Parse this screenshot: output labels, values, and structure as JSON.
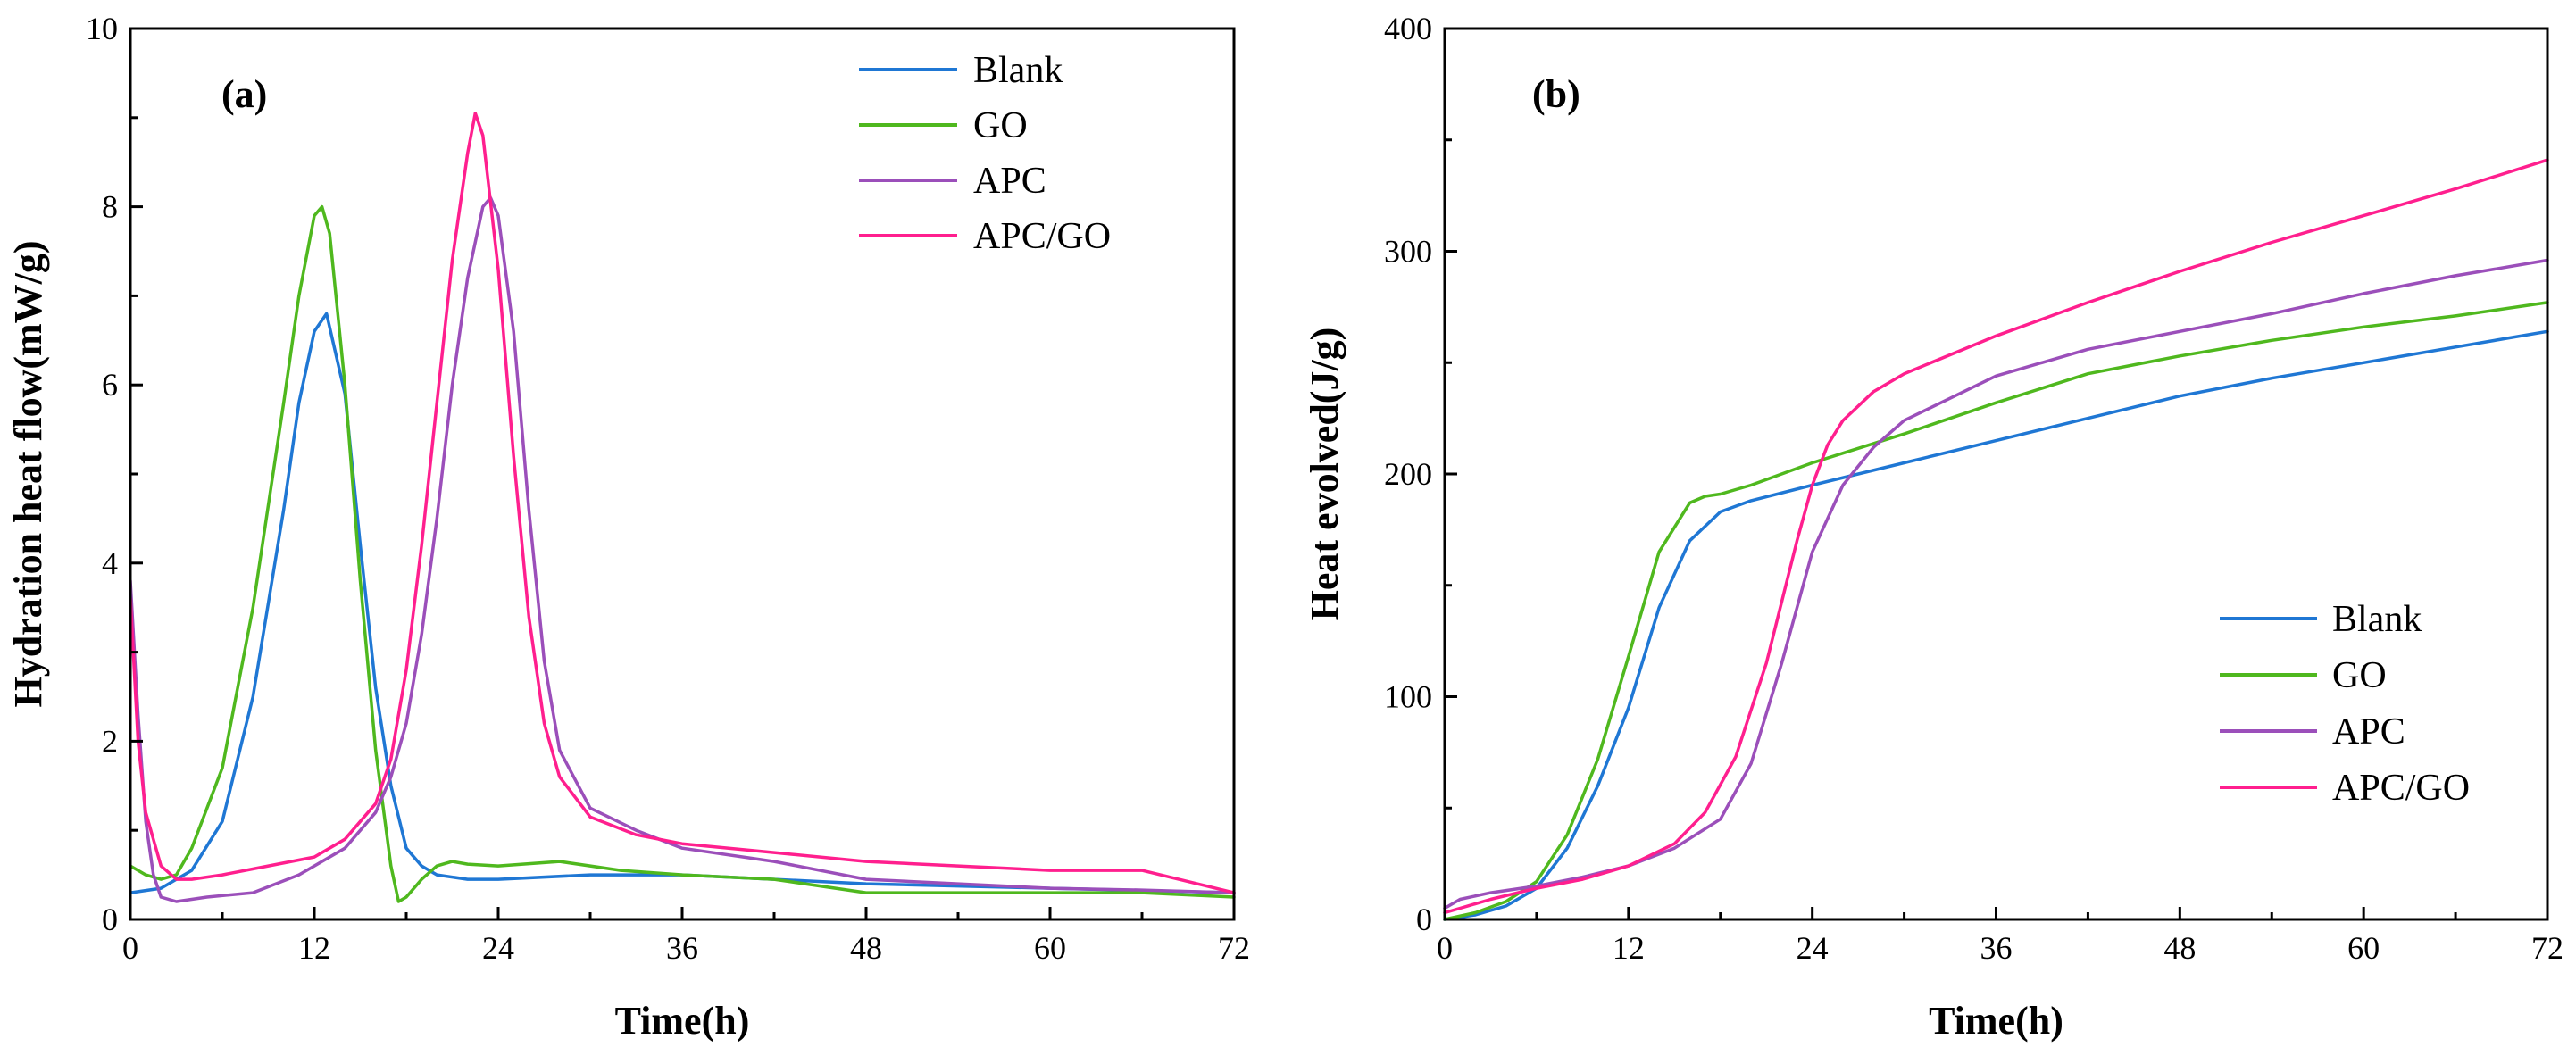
{
  "chart_data": [
    {
      "type": "line",
      "panel_label": "(a)",
      "xlabel": "Time(h)",
      "ylabel": "Hydration heat flow(mW/g)",
      "xlim": [
        0,
        72
      ],
      "ylim": [
        0,
        10
      ],
      "xticks": [
        0,
        12,
        24,
        36,
        48,
        60,
        72
      ],
      "yticks": [
        0,
        2,
        4,
        6,
        8,
        10
      ],
      "legend_position": "top-right",
      "grid": false,
      "series": [
        {
          "name": "Blank",
          "color": "#1f77d4",
          "x": [
            0,
            2,
            4,
            6,
            8,
            10,
            11,
            12,
            12.8,
            14,
            15,
            16,
            17,
            18,
            19,
            20,
            22,
            24,
            30,
            36,
            48,
            60,
            72
          ],
          "y": [
            0.3,
            0.35,
            0.55,
            1.1,
            2.5,
            4.6,
            5.8,
            6.6,
            6.8,
            5.9,
            4.2,
            2.6,
            1.5,
            0.8,
            0.6,
            0.5,
            0.45,
            0.45,
            0.5,
            0.5,
            0.4,
            0.35,
            0.3
          ]
        },
        {
          "name": "GO",
          "color": "#4fb81e",
          "x": [
            0,
            1,
            2,
            3,
            4,
            6,
            8,
            10,
            11,
            12,
            12.5,
            13,
            14,
            15,
            16,
            17,
            17.5,
            18,
            19,
            20,
            21,
            22,
            24,
            28,
            32,
            36,
            42,
            48,
            54,
            60,
            66,
            72
          ],
          "y": [
            0.6,
            0.5,
            0.45,
            0.5,
            0.8,
            1.7,
            3.5,
            5.8,
            7.0,
            7.9,
            8.0,
            7.7,
            6.0,
            3.8,
            1.9,
            0.6,
            0.2,
            0.25,
            0.45,
            0.6,
            0.65,
            0.62,
            0.6,
            0.65,
            0.55,
            0.5,
            0.45,
            0.3,
            0.3,
            0.3,
            0.3,
            0.25
          ]
        },
        {
          "name": "APC",
          "color": "#9b4fba",
          "x": [
            0,
            0.5,
            1,
            1.5,
            2,
            3,
            5,
            8,
            11,
            14,
            16,
            17,
            18,
            19,
            20,
            21,
            22,
            23,
            23.5,
            24,
            25,
            26,
            27,
            28,
            30,
            33,
            36,
            42,
            48,
            54,
            60,
            66,
            72
          ],
          "y": [
            3.8,
            2.3,
            1.1,
            0.5,
            0.25,
            0.2,
            0.25,
            0.3,
            0.5,
            0.8,
            1.2,
            1.6,
            2.2,
            3.2,
            4.5,
            6.0,
            7.2,
            8.0,
            8.1,
            7.9,
            6.6,
            4.6,
            2.9,
            1.9,
            1.25,
            1.0,
            0.8,
            0.65,
            0.45,
            0.4,
            0.35,
            0.33,
            0.3
          ]
        },
        {
          "name": "APC/GO",
          "color": "#ff1f8e",
          "x": [
            0,
            0.5,
            1,
            2,
            3,
            4,
            6,
            9,
            12,
            14,
            16,
            17,
            18,
            19,
            20,
            21,
            22,
            22.5,
            23,
            24,
            25,
            26,
            27,
            28,
            30,
            33,
            36,
            42,
            48,
            54,
            60,
            66,
            72
          ],
          "y": [
            3.6,
            2.0,
            1.2,
            0.6,
            0.45,
            0.45,
            0.5,
            0.6,
            0.7,
            0.9,
            1.3,
            1.8,
            2.8,
            4.2,
            5.8,
            7.4,
            8.6,
            9.05,
            8.8,
            7.3,
            5.2,
            3.4,
            2.2,
            1.6,
            1.15,
            0.95,
            0.85,
            0.75,
            0.65,
            0.6,
            0.55,
            0.55,
            0.3
          ]
        }
      ]
    },
    {
      "type": "line",
      "panel_label": "(b)",
      "xlabel": "Time(h)",
      "ylabel": "Heat evolved(J/g)",
      "xlim": [
        0,
        72
      ],
      "ylim": [
        0,
        400
      ],
      "xticks": [
        0,
        12,
        24,
        36,
        48,
        60,
        72
      ],
      "yticks": [
        0,
        100,
        200,
        300,
        400
      ],
      "legend_position": "bottom-right",
      "grid": false,
      "series": [
        {
          "name": "Blank",
          "color": "#1f77d4",
          "x": [
            0,
            2,
            4,
            6,
            8,
            10,
            12,
            14,
            16,
            18,
            20,
            24,
            30,
            36,
            42,
            48,
            54,
            60,
            66,
            72
          ],
          "y": [
            0,
            2,
            6,
            14,
            32,
            60,
            95,
            140,
            170,
            183,
            188,
            195,
            205,
            215,
            225,
            235,
            243,
            250,
            257,
            264
          ]
        },
        {
          "name": "GO",
          "color": "#4fb81e",
          "x": [
            0,
            2,
            4,
            6,
            8,
            10,
            12,
            14,
            16,
            17,
            18,
            20,
            24,
            30,
            36,
            42,
            48,
            54,
            60,
            66,
            72
          ],
          "y": [
            0,
            3,
            8,
            17,
            38,
            72,
            118,
            165,
            187,
            190,
            191,
            195,
            205,
            218,
            232,
            245,
            253,
            260,
            266,
            271,
            277
          ]
        },
        {
          "name": "APC",
          "color": "#9b4fba",
          "x": [
            0,
            1,
            3,
            6,
            9,
            12,
            15,
            18,
            20,
            22,
            24,
            26,
            28,
            30,
            36,
            42,
            48,
            54,
            60,
            66,
            72
          ],
          "y": [
            5,
            9,
            12,
            15,
            19,
            24,
            32,
            45,
            70,
            115,
            165,
            195,
            212,
            224,
            244,
            256,
            264,
            272,
            281,
            289,
            296
          ]
        },
        {
          "name": "APC/GO",
          "color": "#ff1f8e",
          "x": [
            0,
            1,
            3,
            6,
            9,
            12,
            15,
            17,
            19,
            21,
            23,
            24,
            25,
            26,
            28,
            30,
            36,
            42,
            48,
            54,
            60,
            66,
            72
          ],
          "y": [
            3,
            5,
            9,
            14,
            18,
            24,
            34,
            48,
            73,
            115,
            170,
            195,
            213,
            224,
            237,
            245,
            262,
            277,
            291,
            304,
            316,
            328,
            341
          ]
        }
      ]
    }
  ]
}
